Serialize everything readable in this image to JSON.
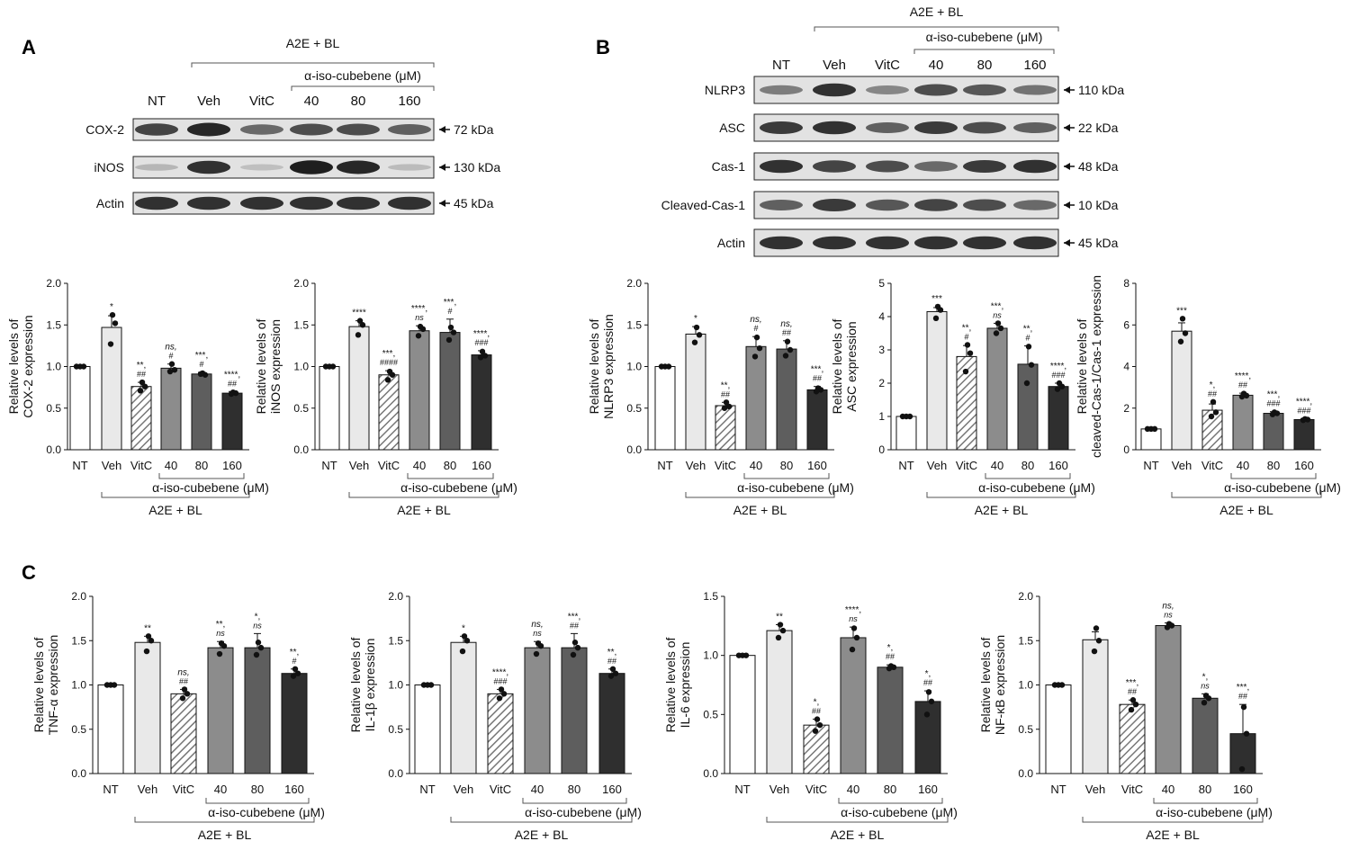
{
  "figure": {
    "panel_labels": [
      "A",
      "B",
      "C"
    ],
    "treatment_label": "A2E + BL",
    "compound_label": "α-iso-cubebene (μM)",
    "lane_labels": [
      "NT",
      "Veh",
      "VitC",
      "40",
      "80",
      "160"
    ]
  },
  "blots": [
    {
      "panel": "A",
      "rows": [
        {
          "protein": "COX-2",
          "size": "72 kDa",
          "band_intensity": [
            0.75,
            0.9,
            0.55,
            0.7,
            0.7,
            0.6
          ]
        },
        {
          "protein": "iNOS",
          "size": "130 kDa",
          "band_intensity": [
            0.15,
            0.85,
            0.1,
            0.95,
            0.9,
            0.12
          ]
        },
        {
          "protein": "Actin",
          "size": "45 kDa",
          "band_intensity": [
            0.85,
            0.85,
            0.85,
            0.85,
            0.85,
            0.85
          ]
        }
      ]
    },
    {
      "panel": "B",
      "rows": [
        {
          "protein": "NLRP3",
          "size": "110 kDa",
          "band_intensity": [
            0.45,
            0.85,
            0.4,
            0.7,
            0.65,
            0.5
          ]
        },
        {
          "protein": "ASC",
          "size": "22 kDa",
          "band_intensity": [
            0.8,
            0.85,
            0.6,
            0.8,
            0.7,
            0.6
          ]
        },
        {
          "protein": "Cas-1",
          "size": "48 kDa",
          "band_intensity": [
            0.85,
            0.75,
            0.7,
            0.55,
            0.8,
            0.85
          ]
        },
        {
          "protein": "Cleaved-Cas-1",
          "size": "10 kDa",
          "band_intensity": [
            0.6,
            0.8,
            0.65,
            0.75,
            0.7,
            0.55
          ]
        },
        {
          "protein": "Actin",
          "size": "45 kDa",
          "band_intensity": [
            0.85,
            0.85,
            0.85,
            0.85,
            0.85,
            0.85
          ]
        }
      ]
    }
  ],
  "chart_data": [
    {
      "type": "bar",
      "panel": "A",
      "ylabel": [
        "Relative levels of",
        "COX-2 expression"
      ],
      "ylim": [
        0,
        2
      ],
      "yticks": [
        "0.0",
        "0.5",
        "1.0",
        "1.5",
        "2.0"
      ],
      "categories": [
        "NT",
        "Veh",
        "VitC",
        "40",
        "80",
        "160"
      ],
      "values": [
        1.0,
        1.47,
        0.76,
        0.98,
        0.91,
        0.68
      ],
      "errors": [
        0,
        0.14,
        0.05,
        0.05,
        0.02,
        0.02
      ],
      "points": [
        [
          1.0,
          1.0,
          1.0
        ],
        [
          1.62,
          1.52,
          1.27
        ],
        [
          0.81,
          0.76,
          0.71
        ],
        [
          1.03,
          0.96,
          0.94
        ],
        [
          0.92,
          0.9,
          0.91
        ],
        [
          0.69,
          0.68,
          0.67
        ]
      ],
      "annotations": [
        [
          "",
          ""
        ],
        [
          "*",
          ""
        ],
        [
          "**,",
          "##"
        ],
        [
          "ns,",
          "#"
        ],
        [
          "***,",
          "#"
        ],
        [
          "****,",
          "##"
        ]
      ]
    },
    {
      "type": "bar",
      "panel": "A",
      "ylabel": [
        "Relative levels of",
        "iNOS expression"
      ],
      "ylim": [
        0,
        2
      ],
      "yticks": [
        "0.0",
        "0.5",
        "1.0",
        "1.5",
        "2.0"
      ],
      "categories": [
        "NT",
        "Veh",
        "VitC",
        "40",
        "80",
        "160"
      ],
      "values": [
        1.0,
        1.48,
        0.9,
        1.43,
        1.41,
        1.14
      ],
      "errors": [
        0,
        0.07,
        0.05,
        0.06,
        0.16,
        0.05
      ],
      "points": [
        [
          1.0,
          1.0,
          1.0
        ],
        [
          1.55,
          1.5,
          1.38
        ],
        [
          0.94,
          0.9,
          0.84
        ],
        [
          1.48,
          1.45,
          1.37
        ],
        [
          1.47,
          1.41,
          1.32
        ],
        [
          1.18,
          1.13,
          1.11
        ]
      ],
      "annotations": [
        [
          "",
          ""
        ],
        [
          "****",
          ""
        ],
        [
          "***,",
          "####"
        ],
        [
          "****,",
          "ns"
        ],
        [
          "***,",
          "#"
        ],
        [
          "****,",
          "###"
        ]
      ]
    },
    {
      "type": "bar",
      "panel": "B",
      "ylabel": [
        "Relative levels of",
        "NLRP3 expression"
      ],
      "ylim": [
        0,
        2
      ],
      "yticks": [
        "0.0",
        "0.5",
        "1.0",
        "1.5",
        "2.0"
      ],
      "categories": [
        "NT",
        "Veh",
        "VitC",
        "40",
        "80",
        "160"
      ],
      "values": [
        1.0,
        1.39,
        0.53,
        1.24,
        1.21,
        0.72
      ],
      "errors": [
        0,
        0.09,
        0.04,
        0.12,
        0.1,
        0.04
      ],
      "points": [
        [
          1.0,
          1.0,
          1.0
        ],
        [
          1.47,
          1.38,
          1.29
        ],
        [
          0.57,
          0.52,
          0.5
        ],
        [
          1.35,
          1.22,
          1.12
        ],
        [
          1.3,
          1.2,
          1.13
        ],
        [
          0.74,
          0.72,
          0.7
        ]
      ],
      "annotations": [
        [
          "",
          ""
        ],
        [
          "*",
          ""
        ],
        [
          "**,",
          "##"
        ],
        [
          "ns,",
          "#"
        ],
        [
          "ns,",
          "##"
        ],
        [
          "***,",
          "##"
        ]
      ]
    },
    {
      "type": "bar",
      "panel": "B",
      "ylabel": [
        "Relative levels of",
        "ASC expression"
      ],
      "ylim": [
        0,
        5
      ],
      "yticks": [
        "0",
        "1",
        "2",
        "3",
        "4",
        "5"
      ],
      "categories": [
        "NT",
        "Veh",
        "VitC",
        "40",
        "80",
        "160"
      ],
      "values": [
        1.0,
        4.15,
        2.8,
        3.65,
        2.57,
        1.9
      ],
      "errors": [
        0,
        0.12,
        0.33,
        0.15,
        0.55,
        0.1
      ],
      "points": [
        [
          1.0,
          1.0,
          1.0
        ],
        [
          4.3,
          4.2,
          3.95
        ],
        [
          3.15,
          2.9,
          2.35
        ],
        [
          3.8,
          3.65,
          3.5
        ],
        [
          3.1,
          2.55,
          2.0
        ],
        [
          2.0,
          1.9,
          1.82
        ]
      ],
      "annotations": [
        [
          "",
          ""
        ],
        [
          "***",
          ""
        ],
        [
          "**,",
          "#"
        ],
        [
          "***,",
          "ns"
        ],
        [
          "**,",
          "#"
        ],
        [
          "****,",
          "###"
        ]
      ]
    },
    {
      "type": "bar",
      "panel": "B",
      "ylabel": [
        "Relative levels of",
        "cleaved-Cas-1/Cas-1 expression"
      ],
      "ylim": [
        0,
        8
      ],
      "yticks": [
        "0",
        "2",
        "4",
        "6",
        "8"
      ],
      "categories": [
        "NT",
        "Veh",
        "VitC",
        "40",
        "80",
        "160"
      ],
      "values": [
        1.0,
        5.7,
        1.9,
        2.62,
        1.75,
        1.45
      ],
      "errors": [
        0,
        0.4,
        0.3,
        0.1,
        0.08,
        0.05
      ],
      "points": [
        [
          1.0,
          1.0,
          1.0
        ],
        [
          6.3,
          5.6,
          5.2
        ],
        [
          2.3,
          1.8,
          1.6
        ],
        [
          2.7,
          2.6,
          2.55
        ],
        [
          1.8,
          1.75,
          1.7
        ],
        [
          1.48,
          1.45,
          1.42
        ]
      ],
      "annotations": [
        [
          "",
          ""
        ],
        [
          "***",
          ""
        ],
        [
          "*,",
          "##"
        ],
        [
          "****,",
          "##"
        ],
        [
          "***,",
          "###"
        ],
        [
          "****,",
          "###"
        ]
      ]
    },
    {
      "type": "bar",
      "panel": "C",
      "ylabel": [
        "Relative levels of",
        "TNF-α expression"
      ],
      "ylim": [
        0,
        2
      ],
      "yticks": [
        "0.0",
        "0.5",
        "1.0",
        "1.5",
        "2.0"
      ],
      "categories": [
        "NT",
        "Veh",
        "VitC",
        "40",
        "80",
        "160"
      ],
      "values": [
        1.0,
        1.48,
        0.9,
        1.42,
        1.42,
        1.13
      ],
      "errors": [
        0,
        0.07,
        0.05,
        0.07,
        0.16,
        0.05
      ],
      "points": [
        [
          1.0,
          1.0,
          1.0
        ],
        [
          1.55,
          1.5,
          1.38
        ],
        [
          0.95,
          0.9,
          0.85
        ],
        [
          1.47,
          1.44,
          1.35
        ],
        [
          1.48,
          1.42,
          1.34
        ],
        [
          1.18,
          1.13,
          1.1
        ]
      ],
      "annotations": [
        [
          "",
          ""
        ],
        [
          "**",
          ""
        ],
        [
          "ns,",
          "##"
        ],
        [
          "**,",
          "ns"
        ],
        [
          "*,",
          "ns"
        ],
        [
          "**,",
          "#"
        ]
      ]
    },
    {
      "type": "bar",
      "panel": "C",
      "ylabel": [
        "Relative levels of",
        "IL-1β expression"
      ],
      "ylim": [
        0,
        2
      ],
      "yticks": [
        "0.0",
        "0.5",
        "1.0",
        "1.5",
        "2.0"
      ],
      "categories": [
        "NT",
        "Veh",
        "VitC",
        "40",
        "80",
        "160"
      ],
      "values": [
        1.0,
        1.48,
        0.9,
        1.42,
        1.42,
        1.13
      ],
      "errors": [
        0,
        0.07,
        0.05,
        0.07,
        0.16,
        0.05
      ],
      "points": [
        [
          1.0,
          1.0,
          1.0
        ],
        [
          1.55,
          1.5,
          1.38
        ],
        [
          0.95,
          0.9,
          0.85
        ],
        [
          1.47,
          1.44,
          1.35
        ],
        [
          1.48,
          1.42,
          1.34
        ],
        [
          1.18,
          1.13,
          1.1
        ]
      ],
      "annotations": [
        [
          "",
          ""
        ],
        [
          "*",
          ""
        ],
        [
          "****,",
          "###"
        ],
        [
          "ns,",
          "ns"
        ],
        [
          "***,",
          "##"
        ],
        [
          "**,",
          "##"
        ]
      ]
    },
    {
      "type": "bar",
      "panel": "C",
      "ylabel": [
        "Relative levels of",
        "IL-6 expression"
      ],
      "ylim": [
        0,
        1.5
      ],
      "yticks": [
        "0.0",
        "0.5",
        "1.0",
        "1.5"
      ],
      "categories": [
        "NT",
        "Veh",
        "VitC",
        "40",
        "80",
        "160"
      ],
      "values": [
        1.0,
        1.21,
        0.41,
        1.15,
        0.9,
        0.61
      ],
      "errors": [
        0,
        0.05,
        0.05,
        0.09,
        0.02,
        0.09
      ],
      "points": [
        [
          1.0,
          1.0,
          1.0
        ],
        [
          1.26,
          1.21,
          1.15
        ],
        [
          0.46,
          0.41,
          0.36
        ],
        [
          1.23,
          1.15,
          1.05
        ],
        [
          0.91,
          0.9,
          0.89
        ],
        [
          0.69,
          0.61,
          0.5
        ]
      ],
      "annotations": [
        [
          "",
          ""
        ],
        [
          "**",
          ""
        ],
        [
          "*,",
          "##"
        ],
        [
          "****,",
          "ns"
        ],
        [
          "*,",
          "##"
        ],
        [
          "*,",
          "##"
        ]
      ]
    },
    {
      "type": "bar",
      "panel": "C",
      "ylabel": [
        "Relative levels of",
        "NF-κB expression"
      ],
      "ylim": [
        0,
        2
      ],
      "yticks": [
        "0.0",
        "0.5",
        "1.0",
        "1.5",
        "2.0"
      ],
      "categories": [
        "NT",
        "Veh",
        "VitC",
        "40",
        "80",
        "160"
      ],
      "values": [
        1.0,
        1.51,
        0.78,
        1.67,
        0.85,
        0.45
      ],
      "errors": [
        0,
        0.09,
        0.05,
        0.03,
        0.05,
        0.33
      ],
      "points": [
        [
          1.0,
          1.0,
          1.0
        ],
        [
          1.64,
          1.5,
          1.38
        ],
        [
          0.83,
          0.78,
          0.72
        ],
        [
          1.69,
          1.67,
          1.65
        ],
        [
          0.88,
          0.85,
          0.8
        ],
        [
          0.75,
          0.45,
          0.05
        ]
      ],
      "annotations": [
        [
          "",
          ""
        ],
        [
          "",
          ""
        ],
        [
          "***,",
          "##"
        ],
        [
          "ns,",
          "ns"
        ],
        [
          "*,",
          "ns"
        ],
        [
          "***,",
          "##"
        ]
      ]
    }
  ],
  "style": {
    "bar_fills": [
      "#ffffff",
      "#e9e9e9",
      "hatch",
      "#8c8c8c",
      "#5e5e5e",
      "#2f2f2f"
    ],
    "ink": "#111111"
  }
}
